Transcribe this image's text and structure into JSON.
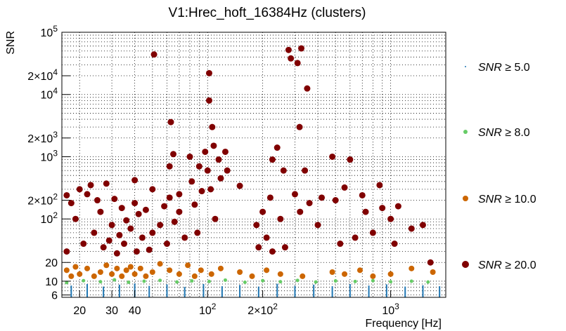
{
  "chart_data": {
    "type": "scatter",
    "title": "V1:Hrec_hoft_16384Hz (clusters)",
    "xlabel": "Frequency [Hz]",
    "ylabel": "SNR",
    "x_scale": "log",
    "y_scale": "log",
    "xlim": [
      16,
      2000
    ],
    "ylim": [
      5.5,
      100000
    ],
    "grid": true,
    "legend_position": "right",
    "x_tick_labels": [
      {
        "value": 20,
        "label": "20"
      },
      {
        "value": 30,
        "label": "30"
      },
      {
        "value": 40,
        "label": "40"
      },
      {
        "value": 100,
        "label": "10",
        "sup": "2"
      },
      {
        "value": 200,
        "label": "2×10",
        "sup": "2"
      },
      {
        "value": 1000,
        "label": "10",
        "sup": "3"
      }
    ],
    "y_tick_labels": [
      {
        "value": 6,
        "label": "6"
      },
      {
        "value": 10,
        "label": "10"
      },
      {
        "value": 20,
        "label": "20"
      },
      {
        "value": 100,
        "label": "10",
        "sup": "2"
      },
      {
        "value": 200,
        "label": "2×10",
        "sup": "2"
      },
      {
        "value": 1000,
        "label": "10",
        "sup": "3"
      },
      {
        "value": 2000,
        "label": "2×10",
        "sup": "3"
      },
      {
        "value": 10000,
        "label": "10",
        "sup": "4"
      },
      {
        "value": 20000,
        "label": "2×10",
        "sup": "4"
      },
      {
        "value": 100000,
        "label": "10",
        "sup": "5"
      }
    ],
    "series": [
      {
        "name": "SNR ≥ 5.0",
        "color": "#1f77b4",
        "marker": "dot",
        "points": [
          [
            18,
            8.5
          ],
          [
            22,
            9.0
          ],
          [
            27,
            8.2
          ],
          [
            33,
            8.8
          ],
          [
            40,
            9.2
          ],
          [
            48,
            8.4
          ],
          [
            60,
            8.9
          ],
          [
            75,
            8.1
          ],
          [
            95,
            9.0
          ],
          [
            120,
            8.3
          ],
          [
            150,
            8.7
          ],
          [
            190,
            8.2
          ],
          [
            240,
            9.1
          ],
          [
            300,
            8.4
          ],
          [
            380,
            8.8
          ],
          [
            480,
            8.3
          ],
          [
            600,
            9.0
          ],
          [
            760,
            8.5
          ],
          [
            950,
            8.9
          ],
          [
            1200,
            8.2
          ],
          [
            1500,
            8.6
          ],
          [
            1850,
            8.3
          ]
        ]
      },
      {
        "name": "SNR ≥ 8.0",
        "color": "#66cc66",
        "marker": "small-circle",
        "points": [
          [
            17,
            9.5
          ],
          [
            21,
            10.2
          ],
          [
            26,
            9.8
          ],
          [
            31,
            10.5
          ],
          [
            37,
            9.6
          ],
          [
            45,
            10.0
          ],
          [
            55,
            10.3
          ],
          [
            68,
            9.7
          ],
          [
            82,
            10.1
          ],
          [
            102,
            9.9
          ],
          [
            125,
            10.4
          ],
          [
            160,
            9.6
          ],
          [
            200,
            10.2
          ],
          [
            250,
            9.8
          ],
          [
            310,
            10.3
          ],
          [
            390,
            9.7
          ],
          [
            500,
            10.1
          ],
          [
            640,
            9.9
          ],
          [
            800,
            10.2
          ],
          [
            1000,
            9.8
          ],
          [
            1300,
            10.0
          ],
          [
            1600,
            9.7
          ]
        ]
      },
      {
        "name": "SNR ≥ 10.0",
        "color": "#cc6600",
        "marker": "circle",
        "points": [
          [
            17,
            15
          ],
          [
            18,
            12
          ],
          [
            19,
            17
          ],
          [
            20,
            13
          ],
          [
            22,
            16
          ],
          [
            24,
            12
          ],
          [
            26,
            14
          ],
          [
            28,
            18
          ],
          [
            30,
            13
          ],
          [
            32,
            16
          ],
          [
            34,
            12
          ],
          [
            36,
            15
          ],
          [
            38,
            17
          ],
          [
            40,
            13
          ],
          [
            43,
            16
          ],
          [
            46,
            12
          ],
          [
            50,
            14
          ],
          [
            55,
            19
          ],
          [
            62,
            15
          ],
          [
            70,
            13
          ],
          [
            78,
            18
          ],
          [
            85,
            12
          ],
          [
            92,
            15
          ],
          [
            105,
            13
          ],
          [
            118,
            16
          ],
          [
            150,
            14
          ],
          [
            175,
            12
          ],
          [
            210,
            15
          ],
          [
            250,
            13
          ],
          [
            330,
            12
          ],
          [
            480,
            14
          ],
          [
            560,
            13
          ],
          [
            680,
            15
          ],
          [
            800,
            12
          ],
          [
            1000,
            13
          ],
          [
            1300,
            16
          ],
          [
            1700,
            14
          ]
        ]
      },
      {
        "name": "SNR ≥ 20.0",
        "color": "#800000",
        "marker": "big-circle",
        "points": [
          [
            17,
            30
          ],
          [
            17,
            240
          ],
          [
            18,
            180
          ],
          [
            19,
            100
          ],
          [
            20,
            300
          ],
          [
            21,
            40
          ],
          [
            22,
            250
          ],
          [
            23,
            350
          ],
          [
            24,
            60
          ],
          [
            25,
            200
          ],
          [
            26,
            130
          ],
          [
            27,
            35
          ],
          [
            28,
            370
          ],
          [
            29,
            45
          ],
          [
            30,
            80
          ],
          [
            31,
            210
          ],
          [
            32,
            28
          ],
          [
            33,
            55
          ],
          [
            34,
            150
          ],
          [
            35,
            40
          ],
          [
            36,
            95
          ],
          [
            38,
            70
          ],
          [
            40,
            180
          ],
          [
            40,
            420
          ],
          [
            41,
            30
          ],
          [
            42,
            120
          ],
          [
            44,
            50
          ],
          [
            46,
            140
          ],
          [
            48,
            32
          ],
          [
            50,
            300
          ],
          [
            50,
            60
          ],
          [
            51,
            44000
          ],
          [
            55,
            80
          ],
          [
            58,
            160
          ],
          [
            60,
            40
          ],
          [
            62,
            700
          ],
          [
            62,
            220
          ],
          [
            63,
            3600
          ],
          [
            65,
            1100
          ],
          [
            66,
            90
          ],
          [
            70,
            250
          ],
          [
            70,
            130
          ],
          [
            75,
            50
          ],
          [
            80,
            1000
          ],
          [
            82,
            400
          ],
          [
            85,
            170
          ],
          [
            88,
            60
          ],
          [
            90,
            700
          ],
          [
            93,
            280
          ],
          [
            97,
            1200
          ],
          [
            100,
            600
          ],
          [
            102,
            8000
          ],
          [
            102,
            22000
          ],
          [
            104,
            300
          ],
          [
            106,
            3000
          ],
          [
            108,
            1500
          ],
          [
            110,
            100
          ],
          [
            115,
            900
          ],
          [
            118,
            450
          ],
          [
            125,
            1200
          ],
          [
            128,
            600
          ],
          [
            150,
            340
          ],
          [
            185,
            80
          ],
          [
            190,
            35
          ],
          [
            200,
            130
          ],
          [
            210,
            50
          ],
          [
            220,
            220
          ],
          [
            226,
            900
          ],
          [
            226,
            30
          ],
          [
            240,
            1400
          ],
          [
            250,
            100
          ],
          [
            260,
            600
          ],
          [
            265,
            35
          ],
          [
            277,
            52000
          ],
          [
            285,
            38000
          ],
          [
            300,
            250
          ],
          [
            310,
            32000
          ],
          [
            318,
            3000
          ],
          [
            320,
            130
          ],
          [
            325,
            55000
          ],
          [
            340,
            600
          ],
          [
            350,
            12500
          ],
          [
            360,
            180
          ],
          [
            400,
            80
          ],
          [
            420,
            220
          ],
          [
            480,
            1000
          ],
          [
            500,
            200
          ],
          [
            530,
            40
          ],
          [
            560,
            320
          ],
          [
            600,
            900
          ],
          [
            640,
            50
          ],
          [
            700,
            240
          ],
          [
            730,
            130
          ],
          [
            800,
            60
          ],
          [
            870,
            350
          ],
          [
            900,
            150
          ],
          [
            1000,
            100
          ],
          [
            1050,
            40
          ],
          [
            1100,
            160
          ],
          [
            1300,
            70
          ],
          [
            1500,
            80
          ],
          [
            1650,
            20
          ]
        ]
      }
    ],
    "legend": [
      {
        "name": "SNR ≥ 5.0",
        "prefix": "SNR",
        "rest": " ≥ 5.0",
        "color": "#1f77b4",
        "marker": "dot"
      },
      {
        "name": "SNR ≥ 8.0",
        "prefix": "SNR",
        "rest": " ≥ 8.0",
        "color": "#66cc66",
        "marker": "small-circle"
      },
      {
        "name": "SNR ≥ 10.0",
        "prefix": "SNR",
        "rest": " ≥ 10.0",
        "color": "#cc6600",
        "marker": "circle"
      },
      {
        "name": "SNR ≥ 20.0",
        "prefix": "SNR",
        "rest": " ≥ 20.0",
        "color": "#800000",
        "marker": "big-circle"
      }
    ]
  }
}
